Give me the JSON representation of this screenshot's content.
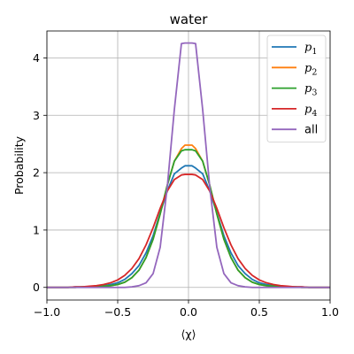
{
  "chart_data": {
    "type": "line",
    "title": "water",
    "xlabel": "⟨χ⟩",
    "ylabel": "Probability",
    "xlim": [
      -1,
      1
    ],
    "ylim": [
      -0.22,
      4.47
    ],
    "xticks": [
      -1.0,
      -0.5,
      0.0,
      0.5,
      1.0
    ],
    "xtick_labels": [
      "−1.0",
      "−0.5",
      "0.0",
      "0.5",
      "1.0"
    ],
    "yticks": [
      0,
      1,
      2,
      3,
      4
    ],
    "ytick_labels": [
      "0",
      "1",
      "2",
      "3",
      "4"
    ],
    "grid": true,
    "legend_position": "upper right",
    "x": [
      -1.0,
      -0.95,
      -0.9,
      -0.85,
      -0.8,
      -0.75,
      -0.7,
      -0.65,
      -0.6,
      -0.55,
      -0.5,
      -0.45,
      -0.4,
      -0.35,
      -0.3,
      -0.25,
      -0.2,
      -0.15,
      -0.1,
      -0.05,
      -0.025,
      0.0,
      0.025,
      0.05,
      0.1,
      0.15,
      0.2,
      0.25,
      0.3,
      0.35,
      0.4,
      0.45,
      0.5,
      0.55,
      0.6,
      0.65,
      0.7,
      0.75,
      0.8,
      0.85,
      0.9,
      0.95,
      1.0
    ],
    "series": [
      {
        "name": "p",
        "subscript": "1",
        "color": "#1f77b4",
        "values": [
          0.0,
          0.0,
          0.0,
          0.0,
          0.01,
          0.01,
          0.01,
          0.02,
          0.03,
          0.05,
          0.08,
          0.14,
          0.24,
          0.38,
          0.6,
          0.9,
          1.3,
          1.68,
          1.98,
          2.08,
          2.12,
          2.12,
          2.12,
          2.08,
          1.98,
          1.68,
          1.3,
          0.9,
          0.6,
          0.38,
          0.24,
          0.14,
          0.08,
          0.05,
          0.03,
          0.02,
          0.01,
          0.01,
          0.01,
          0.0,
          0.0,
          0.0,
          0.0
        ]
      },
      {
        "name": "p",
        "subscript": "2",
        "color": "#ff7f0e",
        "values": [
          0.0,
          0.0,
          0.0,
          0.0,
          0.0,
          0.01,
          0.01,
          0.01,
          0.02,
          0.03,
          0.05,
          0.09,
          0.17,
          0.3,
          0.52,
          0.84,
          1.28,
          1.78,
          2.2,
          2.42,
          2.48,
          2.48,
          2.48,
          2.42,
          2.2,
          1.78,
          1.28,
          0.84,
          0.52,
          0.3,
          0.17,
          0.09,
          0.05,
          0.03,
          0.02,
          0.01,
          0.01,
          0.01,
          0.0,
          0.0,
          0.0,
          0.0,
          0.0
        ]
      },
      {
        "name": "p",
        "subscript": "3",
        "color": "#2ca02c",
        "values": [
          0.0,
          0.0,
          0.0,
          0.0,
          0.0,
          0.01,
          0.01,
          0.01,
          0.02,
          0.03,
          0.05,
          0.09,
          0.17,
          0.3,
          0.52,
          0.84,
          1.28,
          1.78,
          2.2,
          2.38,
          2.4,
          2.4,
          2.4,
          2.38,
          2.2,
          1.78,
          1.28,
          0.84,
          0.52,
          0.3,
          0.17,
          0.09,
          0.05,
          0.03,
          0.02,
          0.01,
          0.01,
          0.01,
          0.0,
          0.0,
          0.0,
          0.0,
          0.0
        ]
      },
      {
        "name": "p",
        "subscript": "4",
        "color": "#d62728",
        "values": [
          0.0,
          0.0,
          0.0,
          0.0,
          0.01,
          0.01,
          0.02,
          0.03,
          0.05,
          0.08,
          0.13,
          0.21,
          0.33,
          0.5,
          0.74,
          1.04,
          1.38,
          1.68,
          1.88,
          1.96,
          1.97,
          1.97,
          1.97,
          1.96,
          1.88,
          1.68,
          1.38,
          1.04,
          0.74,
          0.5,
          0.33,
          0.21,
          0.13,
          0.08,
          0.05,
          0.03,
          0.02,
          0.01,
          0.01,
          0.0,
          0.0,
          0.0,
          0.0
        ]
      },
      {
        "name": "all",
        "subscript": "",
        "color": "#9467bd",
        "values": [
          0.0,
          0.0,
          0.0,
          0.0,
          0.0,
          0.0,
          0.0,
          0.0,
          0.0,
          0.0,
          0.0,
          0.0,
          0.01,
          0.03,
          0.08,
          0.24,
          0.7,
          1.75,
          3.1,
          4.25,
          4.26,
          4.26,
          4.26,
          4.25,
          3.1,
          1.75,
          0.7,
          0.24,
          0.08,
          0.03,
          0.01,
          0.0,
          0.0,
          0.0,
          0.0,
          0.0,
          0.0,
          0.0,
          0.0,
          0.0,
          0.0,
          0.0,
          0.0
        ]
      }
    ]
  }
}
